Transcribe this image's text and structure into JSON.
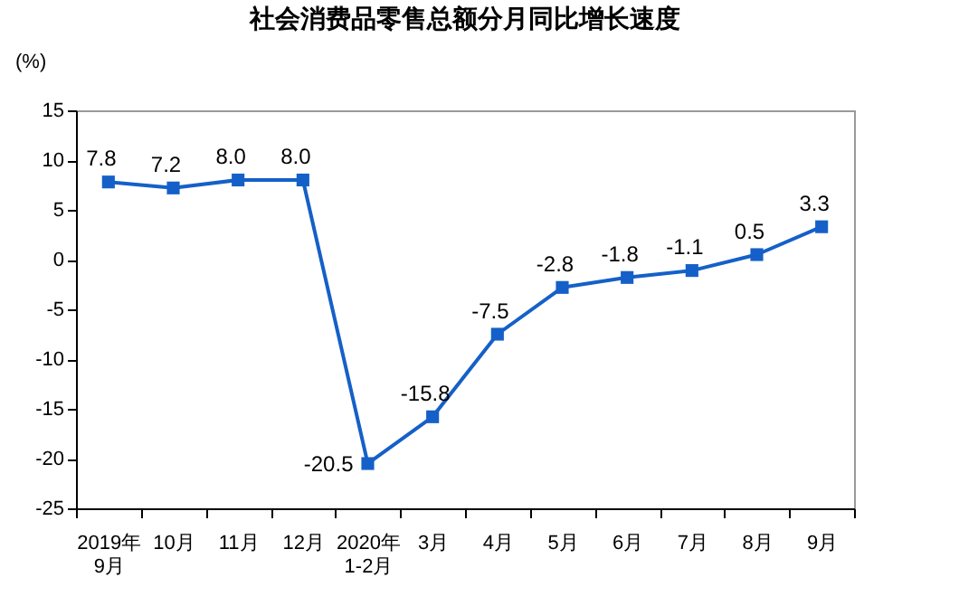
{
  "chart_data": {
    "type": "line",
    "title": "社会消费品零售总额分月同比增长速度",
    "ylabel": "(%)",
    "categories": [
      "2019年\n9月",
      "10月",
      "11月",
      "12月",
      "2020年\n1-2月",
      "3月",
      "4月",
      "5月",
      "6月",
      "7月",
      "8月",
      "9月"
    ],
    "series": [
      {
        "color": "#1560c8",
        "values": [
          7.8,
          7.2,
          8.0,
          8.0,
          -20.5,
          -15.8,
          -7.5,
          -2.8,
          -1.8,
          -1.1,
          0.5,
          3.3
        ],
        "value_labels": [
          "7.8",
          "7.2",
          "8.0",
          "8.0",
          "-20.5",
          "-15.8",
          "-7.5",
          "-2.8",
          "-1.8",
          "-1.1",
          "0.5",
          "3.3"
        ]
      }
    ],
    "ylim": [
      -25,
      15
    ],
    "yticks": [
      -25,
      -20,
      -15,
      -10,
      -5,
      0,
      5,
      10,
      15
    ],
    "marker": "square",
    "grid": false,
    "legend": false
  }
}
